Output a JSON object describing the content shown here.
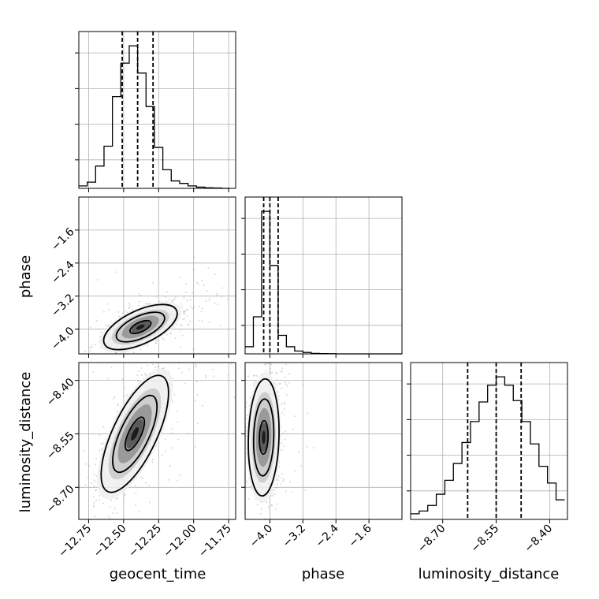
{
  "chart_data": {
    "type": "corner",
    "parameters": [
      "geocent_time",
      "phase",
      "luminosity_distance"
    ],
    "quantiles": [
      0.16,
      0.5,
      0.84
    ],
    "grid": true,
    "ranges": {
      "geocent_time": [
        -12.82,
        -11.7
      ],
      "phase": [
        -4.6,
        -0.8
      ],
      "luminosity_distance": [
        -8.79,
        -8.35
      ]
    },
    "ticks": {
      "geocent_time": [
        "-12.75",
        "-12.50",
        "-12.25",
        "-12.00",
        "-11.75"
      ],
      "phase": [
        "-4.0",
        "-3.2",
        "-2.4",
        "-1.6"
      ],
      "luminosity_distance": [
        "-8.70",
        "-8.55",
        "-8.40"
      ]
    },
    "histograms": [
      {
        "parameter": "geocent_time",
        "edges": [
          -12.82,
          -12.76,
          -12.7,
          -12.64,
          -12.58,
          -12.52,
          -12.46,
          -12.4,
          -12.34,
          -12.28,
          -12.22,
          -12.16,
          -12.1,
          -12.04,
          -11.98,
          -11.92,
          -11.86,
          -11.8,
          -11.74
        ],
        "counts": [
          2,
          5,
          18,
          34,
          74,
          101,
          115,
          93,
          66,
          33,
          15,
          6,
          4,
          2,
          1,
          0.5,
          0.3,
          0
        ],
        "quantile_lines": [
          -12.51,
          -12.4,
          -12.29
        ]
      },
      {
        "parameter": "phase",
        "edges": [
          -4.6,
          -4.4,
          -4.2,
          -4.0,
          -3.8,
          -3.6,
          -3.4,
          -3.2,
          -3.0,
          -2.8,
          -2.6,
          -2.4,
          -2.2,
          -2.0,
          -1.8,
          -1.6,
          -1.4,
          -1.2,
          -1.0,
          -0.8
        ],
        "counts": [
          5,
          26,
          100,
          62,
          13,
          5,
          2,
          1,
          0.3,
          0.2,
          0.1,
          0,
          0,
          0,
          0,
          0,
          0,
          0,
          0
        ],
        "quantile_lines": [
          -4.15,
          -4.0,
          -3.8
        ]
      },
      {
        "parameter": "luminosity_distance",
        "edges": [
          -8.79,
          -8.766,
          -8.742,
          -8.718,
          -8.694,
          -8.67,
          -8.646,
          -8.622,
          -8.598,
          -8.574,
          -8.55,
          -8.526,
          -8.502,
          -8.478,
          -8.454,
          -8.43,
          -8.406,
          -8.382,
          -8.358
        ],
        "counts": [
          4,
          6,
          10,
          18,
          28,
          40,
          55,
          70,
          84,
          96,
          102,
          96,
          85,
          70,
          54,
          38,
          26,
          14
        ],
        "quantile_lines": [
          -8.63,
          -8.55,
          -8.48
        ]
      }
    ],
    "scatter_panels": [
      {
        "x": "geocent_time",
        "y": "phase",
        "mean": [
          -12.38,
          -3.95
        ],
        "std": [
          0.12,
          0.25
        ],
        "rho": 0.6
      },
      {
        "x": "geocent_time",
        "y": "luminosity_distance",
        "mean": [
          -12.42,
          -8.55
        ],
        "std": [
          0.11,
          0.075
        ],
        "rho": 0.7
      },
      {
        "x": "phase",
        "y": "luminosity_distance",
        "mean": [
          -4.15,
          -8.56
        ],
        "std": [
          0.17,
          0.075
        ],
        "rho": 0.1
      }
    ],
    "colors": {
      "line": "#000000",
      "points": "#808080",
      "grid": "#b0b0b0"
    }
  },
  "axis_labels": {
    "x0": "geocent_time",
    "x1": "phase",
    "x2": "luminosity_distance",
    "y1": "phase",
    "y2": "luminosity_distance"
  }
}
